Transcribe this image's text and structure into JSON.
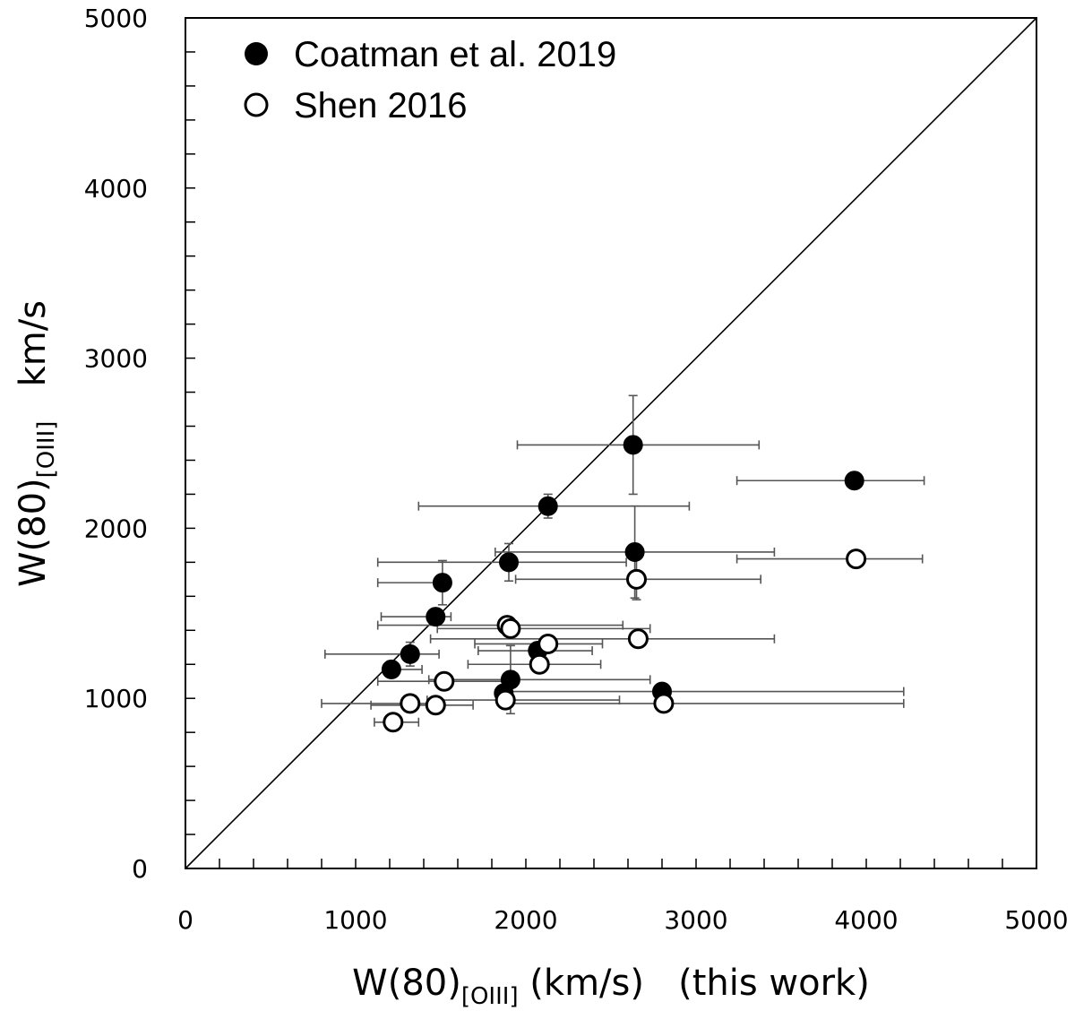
{
  "chart_data": {
    "type": "scatter",
    "xlim": [
      0,
      5000
    ],
    "ylim": [
      0,
      5000
    ],
    "x_ticks": [
      "0",
      "1000",
      "2000",
      "3000",
      "4000",
      "5000"
    ],
    "y_ticks": [
      "0",
      "1000",
      "2000",
      "3000",
      "4000",
      "5000"
    ],
    "xlabel": {
      "main": "W(80)",
      "sub": "[OIII]",
      "tail": " (km/s)   (this work)"
    },
    "ylabel": {
      "main": "W(80)",
      "sub": "[OIII]",
      "tail": "   km/s"
    },
    "grid": false,
    "legend_position": "top-left",
    "reference_line": {
      "from": [
        0,
        0
      ],
      "to": [
        5000,
        5000
      ]
    },
    "series": [
      {
        "name": "Coatman et al. 2019",
        "marker": "filled-circle",
        "points": [
          {
            "x": 2630,
            "y": 2490,
            "xerr": [
              680,
              740
            ],
            "yerr": [
              290,
              290
            ]
          },
          {
            "x": 3930,
            "y": 2280,
            "xerr": [
              690,
              410
            ],
            "yerr": [
              0,
              0
            ]
          },
          {
            "x": 2130,
            "y": 2130,
            "xerr": [
              760,
              830
            ],
            "yerr": [
              70,
              70
            ]
          },
          {
            "x": 2640,
            "y": 1860,
            "xerr": [
              820,
              820
            ],
            "yerr": [
              270,
              270
            ]
          },
          {
            "x": 1900,
            "y": 1800,
            "xerr": [
              770,
              690
            ],
            "yerr": [
              110,
              110
            ]
          },
          {
            "x": 1510,
            "y": 1680,
            "xerr": [
              380,
              0
            ],
            "yerr": [
              130,
              130
            ]
          },
          {
            "x": 1470,
            "y": 1480,
            "xerr": [
              320,
              90
            ],
            "yerr": [
              40,
              40
            ]
          },
          {
            "x": 2070,
            "y": 1280,
            "xerr": [
              350,
              320
            ],
            "yerr": [
              0,
              0
            ]
          },
          {
            "x": 1320,
            "y": 1260,
            "xerr": [
              500,
              170
            ],
            "yerr": [
              70,
              70
            ]
          },
          {
            "x": 1210,
            "y": 1170,
            "xerr": [
              0,
              180
            ],
            "yerr": [
              0,
              0
            ]
          },
          {
            "x": 1910,
            "y": 1110,
            "xerr": [
              480,
              820
            ],
            "yerr": [
              200,
              200
            ]
          },
          {
            "x": 1870,
            "y": 1030,
            "xerr": [
              0,
              0
            ],
            "yerr": [
              70,
              70
            ]
          },
          {
            "x": 2800,
            "y": 1040,
            "xerr": [
              880,
              1420
            ],
            "yerr": [
              0,
              0
            ]
          }
        ]
      },
      {
        "name": "Shen 2016",
        "marker": "open-circle",
        "points": [
          {
            "x": 3940,
            "y": 1820,
            "xerr": [
              700,
              390
            ],
            "yerr": [
              0,
              0
            ]
          },
          {
            "x": 2650,
            "y": 1700,
            "xerr": [
              710,
              730
            ],
            "yerr": [
              120,
              120
            ]
          },
          {
            "x": 1890,
            "y": 1430,
            "xerr": [
              760,
              680
            ],
            "yerr": [
              0,
              0
            ]
          },
          {
            "x": 1910,
            "y": 1410,
            "xerr": [
              430,
              820
            ],
            "yerr": [
              0,
              0
            ]
          },
          {
            "x": 2660,
            "y": 1350,
            "xerr": [
              1220,
              800
            ],
            "yerr": [
              0,
              0
            ]
          },
          {
            "x": 2130,
            "y": 1320,
            "xerr": [
              430,
              320
            ],
            "yerr": [
              0,
              0
            ]
          },
          {
            "x": 2080,
            "y": 1200,
            "xerr": [
              420,
              360
            ],
            "yerr": [
              0,
              0
            ]
          },
          {
            "x": 1520,
            "y": 1100,
            "xerr": [
              390,
              410
            ],
            "yerr": [
              0,
              0
            ]
          },
          {
            "x": 1880,
            "y": 990,
            "xerr": [
              460,
              670
            ],
            "yerr": [
              0,
              0
            ]
          },
          {
            "x": 2810,
            "y": 970,
            "xerr": [
              930,
              1410
            ],
            "yerr": [
              0,
              0
            ]
          },
          {
            "x": 1470,
            "y": 960,
            "xerr": [
              380,
              220
            ],
            "yerr": [
              0,
              0
            ]
          },
          {
            "x": 1320,
            "y": 970,
            "xerr": [
              520,
              160
            ],
            "yerr": [
              0,
              0
            ]
          },
          {
            "x": 1220,
            "y": 860,
            "xerr": [
              110,
              150
            ],
            "yerr": [
              0,
              0
            ]
          }
        ]
      }
    ]
  }
}
